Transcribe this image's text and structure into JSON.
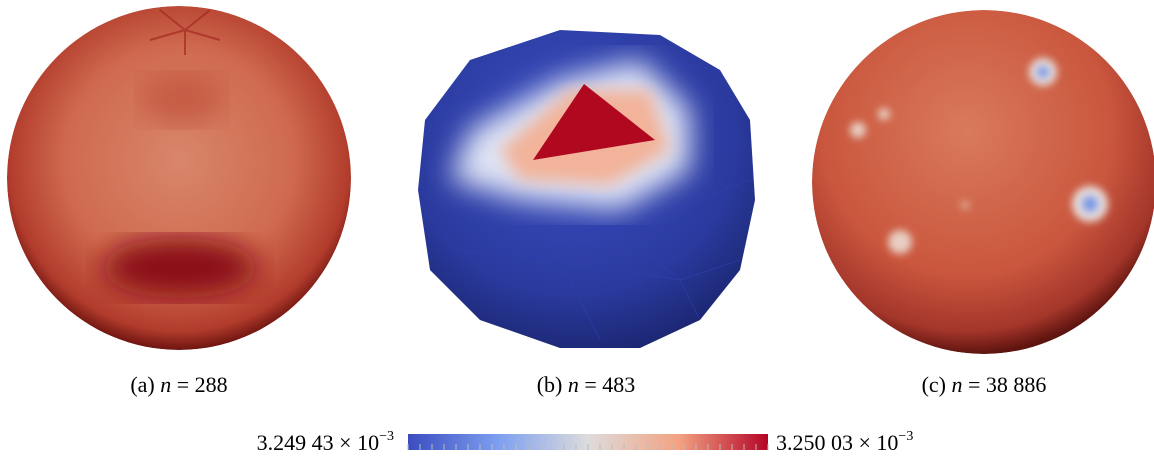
{
  "panels": [
    {
      "label": "(a)",
      "variable": "n",
      "relation": "=",
      "value": "288"
    },
    {
      "label": "(b)",
      "variable": "n",
      "relation": "=",
      "value": "483"
    },
    {
      "label": "(c)",
      "variable": "n",
      "relation": "=",
      "value": "38 886"
    }
  ],
  "colorbar": {
    "min_label": {
      "mantissa": "3.249 43",
      "times": "× 10",
      "exponent": "−3"
    },
    "max_label": {
      "mantissa": "3.250 03",
      "times": "× 10",
      "exponent": "−3"
    }
  }
}
